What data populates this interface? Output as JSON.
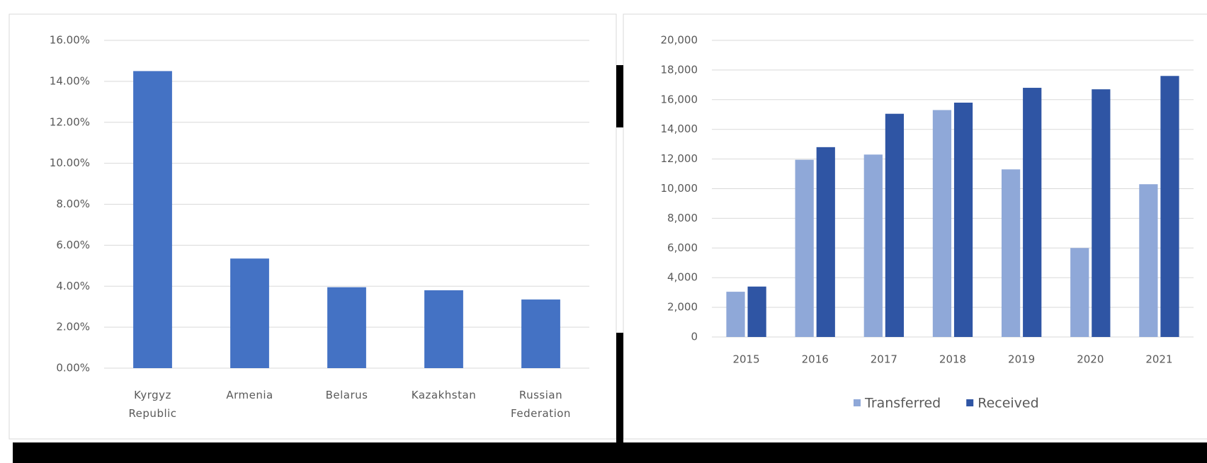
{
  "chart_data": [
    {
      "type": "bar",
      "categories": [
        "Kyrgyz Republic",
        "Armenia",
        "Belarus",
        "Kazakhstan",
        "Russian Federation"
      ],
      "values": [
        14.5,
        5.35,
        3.95,
        3.8,
        3.35
      ],
      "color": "#4472c4",
      "ylim": [
        0,
        16
      ],
      "yticks": [
        {
          "value": 0,
          "label": "0.00%"
        },
        {
          "value": 2,
          "label": "2.00%"
        },
        {
          "value": 4,
          "label": "4.00%"
        },
        {
          "value": 6,
          "label": "6.00%"
        },
        {
          "value": 8,
          "label": "8.00%"
        },
        {
          "value": 10,
          "label": "10.00%"
        },
        {
          "value": 12,
          "label": "12.00%"
        },
        {
          "value": 14,
          "label": "14.00%"
        },
        {
          "value": 16,
          "label": "16.00%"
        }
      ],
      "grid": true
    },
    {
      "type": "bar",
      "categories": [
        "2015",
        "2016",
        "2017",
        "2018",
        "2019",
        "2020",
        "2021"
      ],
      "series": [
        {
          "name": "Transferred",
          "color": "#8fa8d8",
          "values": [
            3050,
            11950,
            12300,
            15300,
            11300,
            6000,
            10300
          ]
        },
        {
          "name": "Received",
          "color": "#2f55a4",
          "values": [
            3400,
            12800,
            15050,
            15800,
            16800,
            16700,
            17600
          ]
        }
      ],
      "ylim": [
        0,
        20000
      ],
      "yticks": [
        0,
        {
          "value": 2000,
          "label": "2,000"
        },
        {
          "value": 4000,
          "label": "4,000"
        },
        {
          "value": 6000,
          "label": "6,000"
        },
        {
          "value": 8000,
          "label": "8,000"
        },
        {
          "value": 10000,
          "label": "10,000"
        },
        {
          "value": 12000,
          "label": "12,000"
        },
        {
          "value": 14000,
          "label": "14,000"
        },
        {
          "value": 16000,
          "label": "16,000"
        },
        {
          "value": 18000,
          "label": "18,000"
        },
        {
          "value": 20000,
          "label": "20,000"
        }
      ],
      "grid": true,
      "legend": "bottom"
    }
  ]
}
